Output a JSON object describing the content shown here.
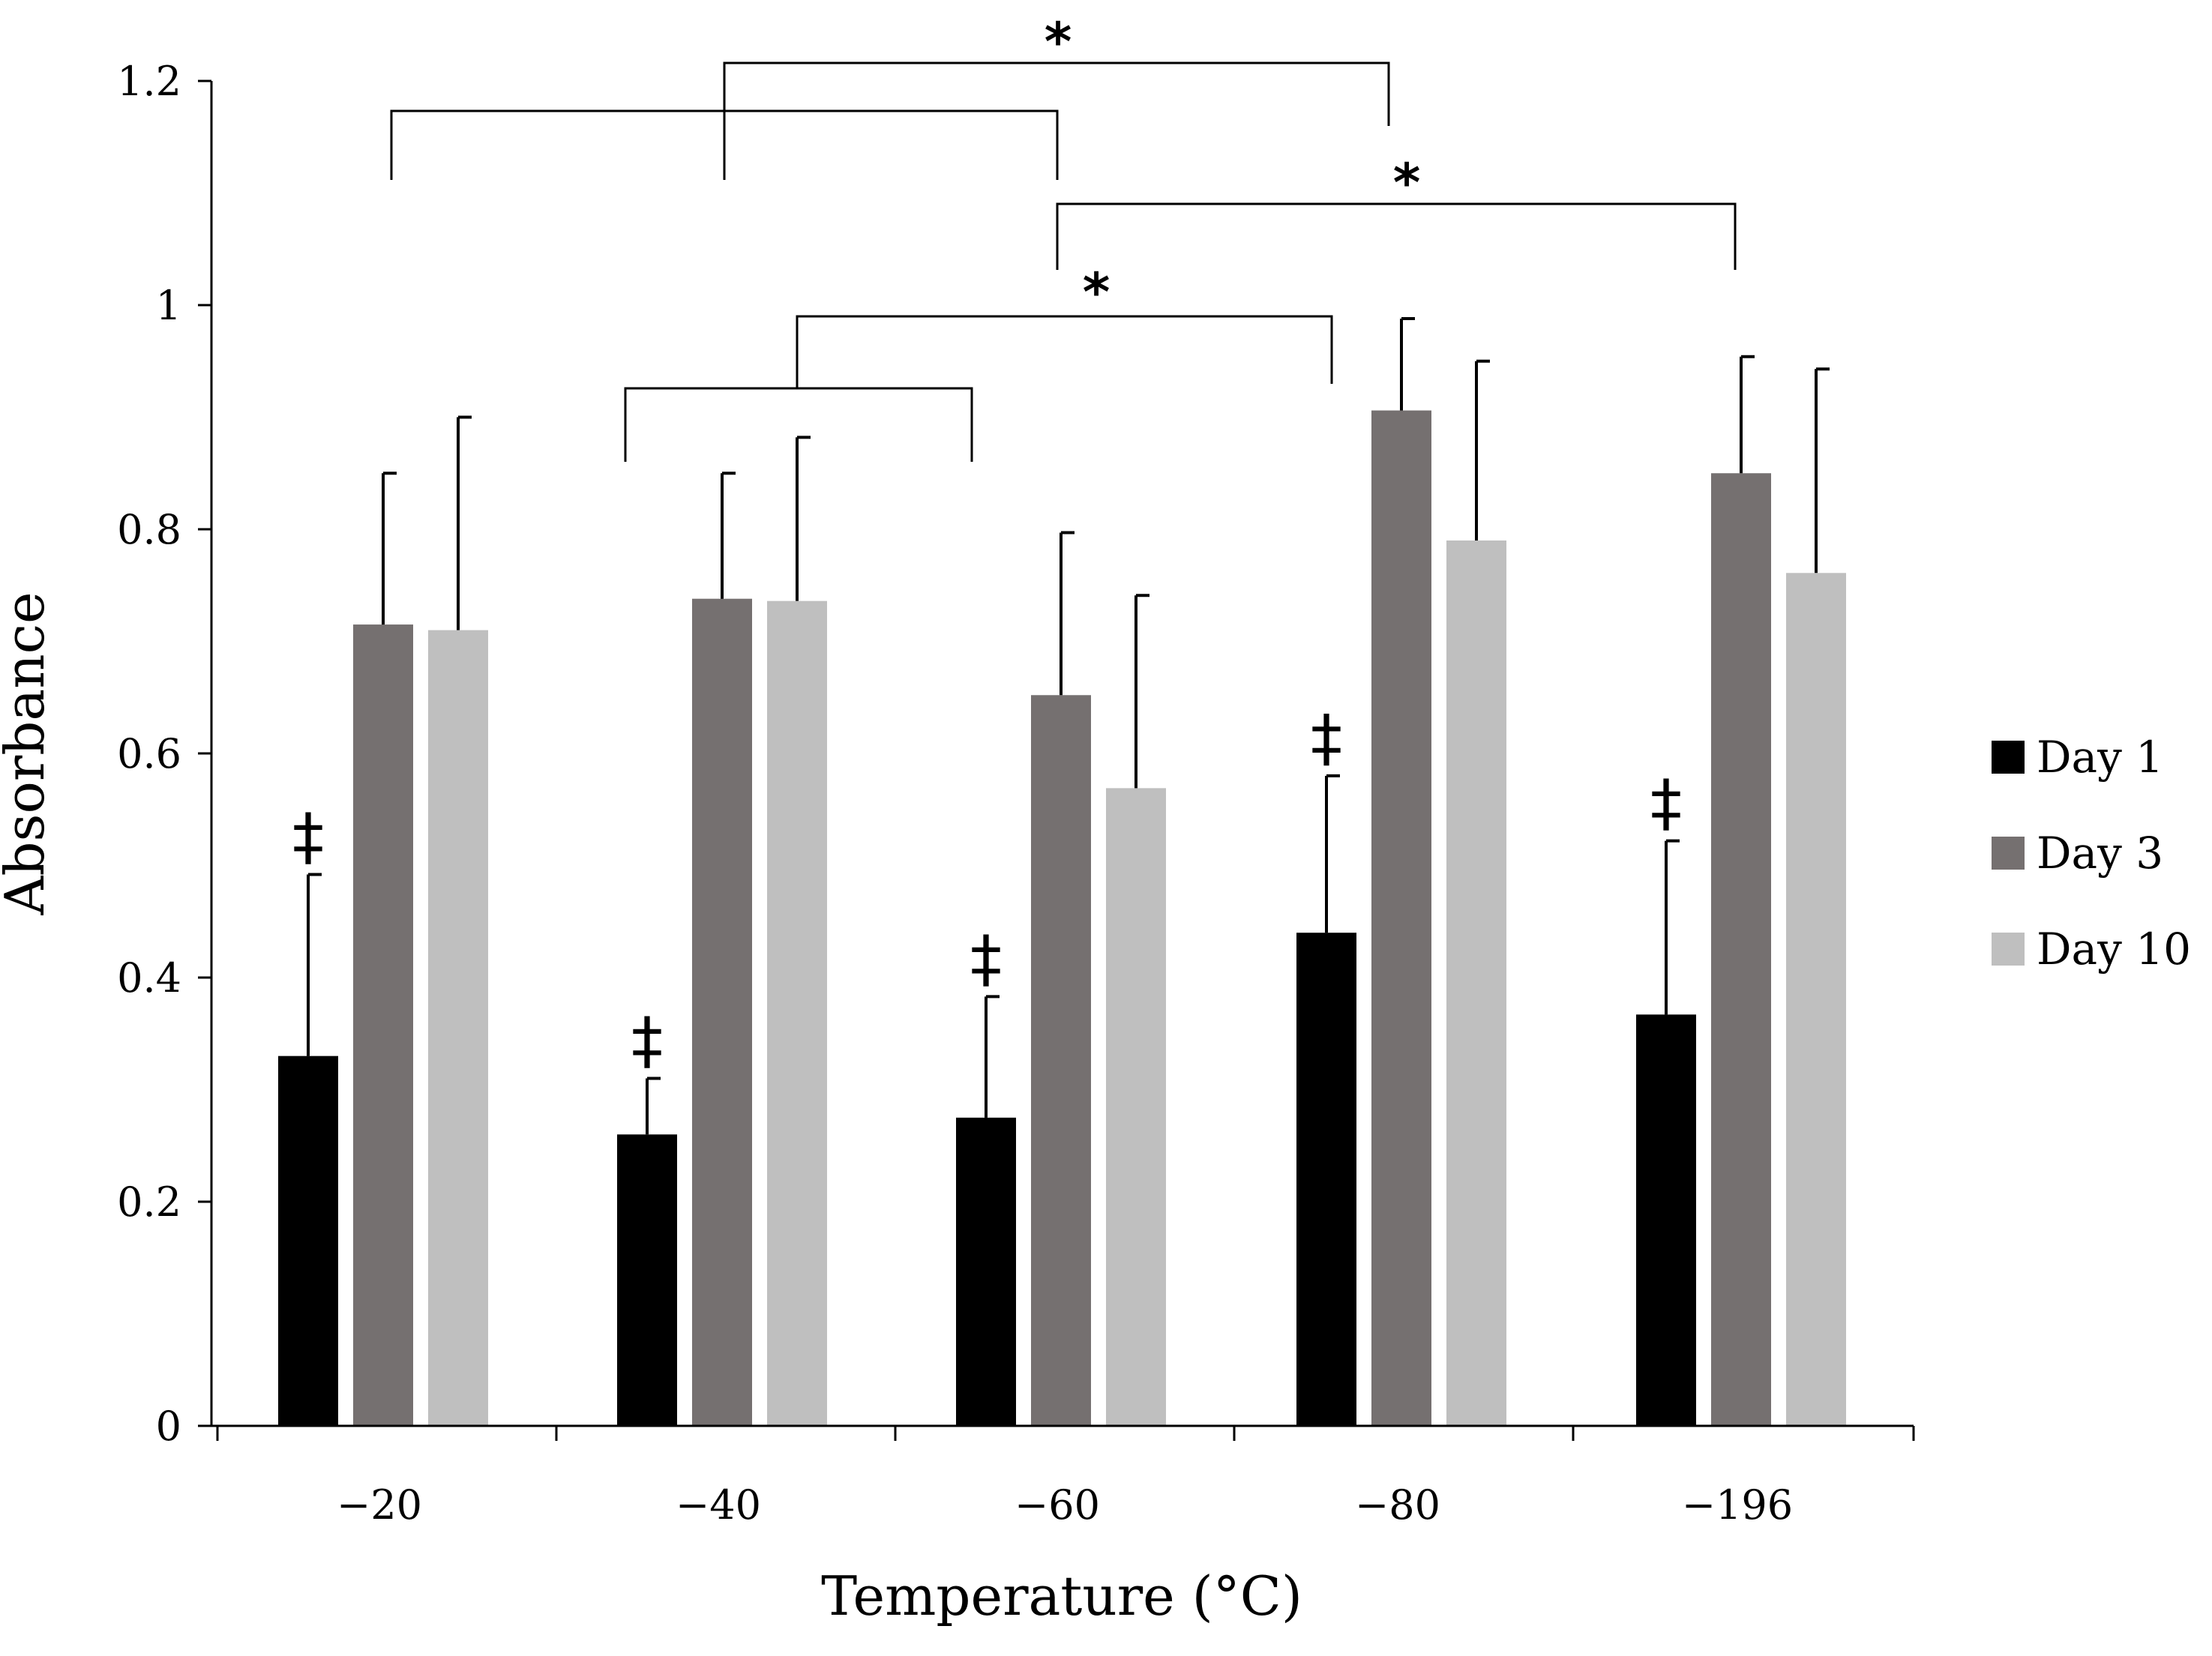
{
  "chart_data": {
    "type": "bar",
    "title": "",
    "xlabel": "Temperature (°C)",
    "ylabel": "Absorbance",
    "ylim": [
      0,
      1.2
    ],
    "yticks": [
      "0",
      "0.2",
      "0.4",
      "0.6",
      "0.8",
      "1",
      "1.2"
    ],
    "ytick_values": [
      0,
      0.2,
      0.4,
      0.6,
      0.8,
      1.0,
      1.2
    ],
    "categories": [
      "−20",
      "−40",
      "−60",
      "−80",
      "−196"
    ],
    "series": [
      {
        "name": "Day 1",
        "color": "#000000",
        "values": [
          0.33,
          0.26,
          0.275,
          0.44,
          0.367
        ],
        "errors": [
          0.162,
          0.05,
          0.108,
          0.14,
          0.155
        ]
      },
      {
        "name": "Day 3",
        "color": "#757070",
        "values": [
          0.715,
          0.738,
          0.652,
          0.906,
          0.85
        ],
        "errors": [
          0.135,
          0.112,
          0.145,
          0.082,
          0.104
        ]
      },
      {
        "name": "Day 10",
        "color": "#bfbfbf",
        "values": [
          0.71,
          0.736,
          0.569,
          0.79,
          0.761
        ],
        "errors": [
          0.19,
          0.146,
          0.172,
          0.16,
          0.182
        ]
      }
    ],
    "legend_position": "right",
    "grid": false,
    "annotations": {
      "dagger_symbol": "‡",
      "dagger_categories": [
        0,
        1,
        2,
        3,
        4
      ],
      "significance_symbol": "*"
    }
  }
}
